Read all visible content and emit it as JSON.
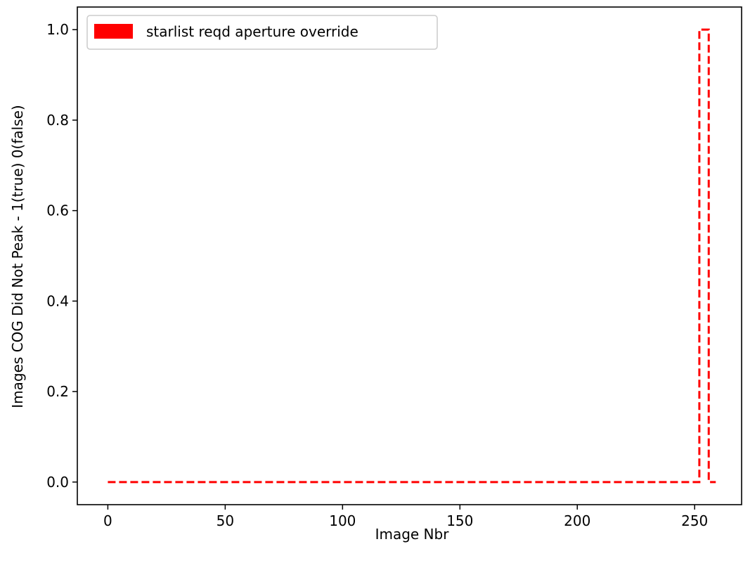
{
  "chart_data": {
    "type": "line",
    "xlabel": "Image Nbr",
    "ylabel": "Images COG Did Not Peak - 1(true) 0(false)",
    "xlim": [
      -13,
      270
    ],
    "ylim": [
      -0.05,
      1.05
    ],
    "x_ticks": [
      0,
      50,
      100,
      150,
      200,
      250
    ],
    "x_tick_labels": [
      "0",
      "50",
      "100",
      "150",
      "200",
      "250"
    ],
    "y_ticks": [
      0.0,
      0.2,
      0.4,
      0.6,
      0.8,
      1.0
    ],
    "y_tick_labels": [
      "0.0",
      "0.2",
      "0.4",
      "0.6",
      "0.8",
      "1.0"
    ],
    "grid": false,
    "legend_position": "top-left",
    "series": [
      {
        "name": "starlist reqd aperture override",
        "color": "#ff0000",
        "line_style": "dashed",
        "step": true,
        "x": [
          0,
          251,
          252,
          255,
          256,
          259
        ],
        "values": [
          0,
          0,
          1,
          1,
          0,
          0
        ]
      }
    ]
  }
}
